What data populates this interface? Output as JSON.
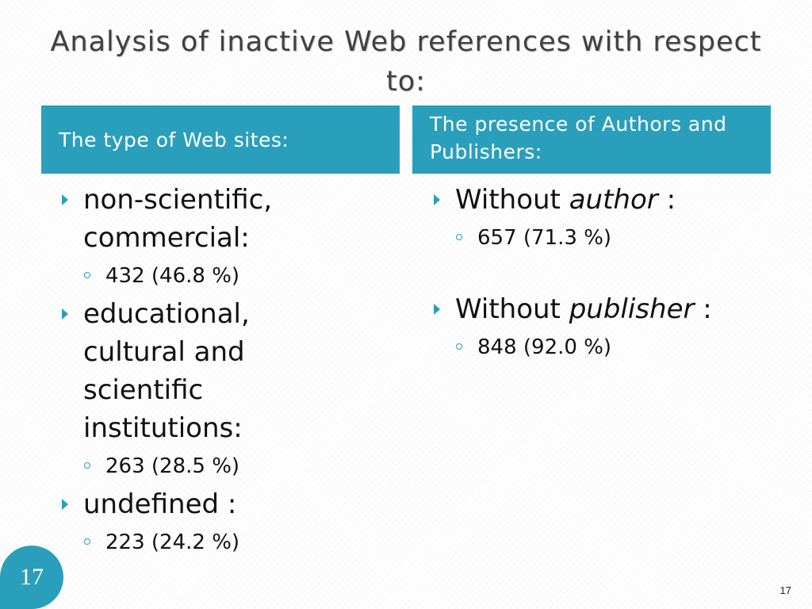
{
  "slide": {
    "title": "Analysis of inactive Web references with respect to:",
    "badge_number": "17",
    "page_number": "17",
    "accent_color": "#2a9fbc"
  },
  "left_column": {
    "header": "The type of Web sites:",
    "items": [
      {
        "label": "non-scientific, commercial:",
        "value": "432 (46.8 %)"
      },
      {
        "label": "educational, cultural and scientific institutions:",
        "value": "263 (28.5 %)"
      },
      {
        "label": "undefined :",
        "value": "223 (24.2 %)"
      }
    ]
  },
  "right_column": {
    "header": "The presence of Authors and Publishers:",
    "items": [
      {
        "label_prefix": "Without",
        "label_emphasis": "author",
        "label_suffix": ":",
        "value": "657 (71.3 %)"
      },
      {
        "label_prefix": "Without",
        "label_emphasis": "publisher",
        "label_suffix": ":",
        "value": "848 (92.0 %)"
      }
    ]
  }
}
